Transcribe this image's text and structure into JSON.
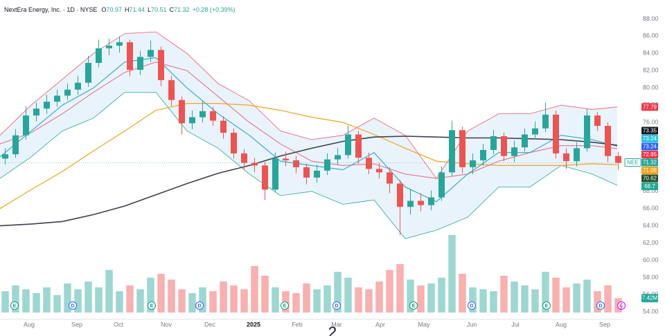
{
  "chart_data": {
    "type": "candlestick",
    "header": {
      "name": "NextEra Energy, Inc.",
      "interval": "1D",
      "exchange": "NYSE",
      "quote": [
        {
          "label": "O",
          "value": 70.97
        },
        {
          "label": "H",
          "value": 71.44
        },
        {
          "label": "L",
          "value": 70.51
        },
        {
          "label": "C",
          "value": 71.32
        }
      ],
      "change": "+0.28 (+0.39%)"
    },
    "xlim": [
      0,
      300
    ],
    "ylim": [
      52.5,
      90.2
    ],
    "yticks": [
      {
        "value": 54,
        "label": "54.00"
      },
      {
        "value": 56,
        "label": "56.00"
      },
      {
        "value": 58,
        "label": "58.00"
      },
      {
        "value": 60,
        "label": "60.00"
      },
      {
        "value": 62,
        "label": "62.00"
      },
      {
        "value": 64,
        "label": "64.00"
      },
      {
        "value": 66,
        "label": "66.00"
      },
      {
        "value": 68,
        "label": "68.00"
      },
      {
        "value": 70,
        "label": "70.00"
      },
      {
        "value": 72,
        "label": "72.00"
      },
      {
        "value": 74,
        "label": "74.00"
      },
      {
        "value": 76,
        "label": "76.00"
      },
      {
        "value": 78,
        "label": "78.00"
      },
      {
        "value": 80,
        "label": "80.00"
      },
      {
        "value": 82,
        "label": "82.00"
      },
      {
        "value": 84,
        "label": "84.00"
      },
      {
        "value": 86,
        "label": "86.00"
      },
      {
        "value": 88,
        "label": "88.00"
      }
    ],
    "xticks": [
      {
        "value": 14,
        "label": "Aug"
      },
      {
        "value": 37,
        "label": "Sep"
      },
      {
        "value": 57,
        "label": "Oct"
      },
      {
        "value": 80,
        "label": "Nov"
      },
      {
        "value": 101,
        "label": "Dec"
      },
      {
        "value": 122,
        "label": "2025"
      },
      {
        "value": 143,
        "label": "Feb"
      },
      {
        "value": 162,
        "label": "Mar"
      },
      {
        "value": 183,
        "label": "Apr"
      },
      {
        "value": 204,
        "label": "May"
      },
      {
        "value": 227,
        "label": "Jun"
      },
      {
        "value": 248,
        "label": "Jul"
      },
      {
        "value": 270,
        "label": "Aug"
      },
      {
        "value": 291,
        "label": "Sep"
      }
    ],
    "up_color": "#26a69a",
    "down_color": "#ef5350",
    "x": [
      2.5,
      7.5,
      12.5,
      17.5,
      22.5,
      27.5,
      32.5,
      37.5,
      42.5,
      47.5,
      52.5,
      57.5,
      62.5,
      67.5,
      72.5,
      77.5,
      82.5,
      87.5,
      92.5,
      97.5,
      102.5,
      107.5,
      112.5,
      117.5,
      122.5,
      127.5,
      132.5,
      137.5,
      142.5,
      147.5,
      152.5,
      157.5,
      162.5,
      167.5,
      172.5,
      177.5,
      182.5,
      187.5,
      192.5,
      197.5,
      202.5,
      207.5,
      212.5,
      217.5,
      222.5,
      227.5,
      232.5,
      237.5,
      242.5,
      247.5,
      252.5,
      257.5,
      262.5,
      267.5,
      272.5,
      277.5,
      282.5,
      287.5,
      292.5,
      297.5
    ],
    "open": [
      71.8,
      72.3,
      74.5,
      76.8,
      77.6,
      78.4,
      79.1,
      79.8,
      80.6,
      82.9,
      84.6,
      84.9,
      85.3,
      82.1,
      83.6,
      84.4,
      80.9,
      78.6,
      75.9,
      76.6,
      77.3,
      76.2,
      74.8,
      72.4,
      71.3,
      71.0,
      68.2,
      71.8,
      71.6,
      70.8,
      69.6,
      70.4,
      71.7,
      72.2,
      74.6,
      71.9,
      70.6,
      70.2,
      68.9,
      66.2,
      66.9,
      66.4,
      67.3,
      70.2,
      75.1,
      70.8,
      71.6,
      72.8,
      74.4,
      72.1,
      73.1,
      74.6,
      75.3,
      76.9,
      72.4,
      71.5,
      73.0,
      76.8,
      75.6,
      72.1
    ],
    "high": [
      73.0,
      75.2,
      77.9,
      78.3,
      79.2,
      79.8,
      80.5,
      81.4,
      83.7,
      85.6,
      85.7,
      86.0,
      85.6,
      84.3,
      85.5,
      84.8,
      81.4,
      79.0,
      77.4,
      78.5,
      77.8,
      76.7,
      75.3,
      72.9,
      71.9,
      71.4,
      72.5,
      72.6,
      72.1,
      71.2,
      71.1,
      72.4,
      73.0,
      75.6,
      75.0,
      72.5,
      71.3,
      70.8,
      69.3,
      68.2,
      67.8,
      68.1,
      70.9,
      76.2,
      75.5,
      72.4,
      73.5,
      75.1,
      74.8,
      73.9,
      75.3,
      76.1,
      78.3,
      77.4,
      73.0,
      73.7,
      77.6,
      77.2,
      76.0,
      72.6
    ],
    "low": [
      71.1,
      71.9,
      74.0,
      76.1,
      77.0,
      77.8,
      78.6,
      79.2,
      80.1,
      82.4,
      83.8,
      84.1,
      81.4,
      81.5,
      83.0,
      80.2,
      77.9,
      74.6,
      75.2,
      76.0,
      75.6,
      74.1,
      71.8,
      70.5,
      70.2,
      67.0,
      67.9,
      70.9,
      70.1,
      68.8,
      69.0,
      69.9,
      71.1,
      71.8,
      71.2,
      70.0,
      69.5,
      67.8,
      62.9,
      65.3,
      65.7,
      65.8,
      66.9,
      69.8,
      70.1,
      70.0,
      71.0,
      72.3,
      71.5,
      71.4,
      72.6,
      74.0,
      74.9,
      71.8,
      70.6,
      70.9,
      72.6,
      75.0,
      71.4,
      70.5
    ],
    "close": [
      72.3,
      74.5,
      76.8,
      77.6,
      78.4,
      79.1,
      79.8,
      80.6,
      82.9,
      84.6,
      84.9,
      85.3,
      82.1,
      83.6,
      84.4,
      80.9,
      78.6,
      75.9,
      76.6,
      77.3,
      76.2,
      74.8,
      72.4,
      71.3,
      71.0,
      68.2,
      71.8,
      71.6,
      70.8,
      69.6,
      70.4,
      71.7,
      72.2,
      74.6,
      71.9,
      70.6,
      70.2,
      68.9,
      66.2,
      66.9,
      66.4,
      67.3,
      70.2,
      75.1,
      70.8,
      71.6,
      72.8,
      74.4,
      72.1,
      73.1,
      74.6,
      75.3,
      76.9,
      72.4,
      71.5,
      73.0,
      76.8,
      75.6,
      72.1,
      71.3
    ],
    "volume": [
      11,
      14,
      12,
      10,
      13,
      9,
      15,
      12,
      16,
      13,
      22,
      11,
      14,
      12,
      18,
      20,
      17,
      12,
      10,
      13,
      11,
      16,
      14,
      12,
      24,
      19,
      13,
      11,
      10,
      15,
      12,
      14,
      21,
      18,
      13,
      12,
      16,
      22,
      25,
      17,
      14,
      15,
      18,
      40,
      20,
      13,
      12,
      11,
      19,
      16,
      14,
      12,
      21,
      18,
      13,
      15,
      17,
      11,
      14,
      7.42
    ],
    "vlim": [
      0,
      40
    ],
    "volume_label": {
      "value": 7.42,
      "label": "7.42M"
    },
    "line_x": [
      0,
      15,
      30,
      45,
      60,
      75,
      90,
      105,
      120,
      135,
      150,
      165,
      180,
      195,
      210,
      225,
      240,
      255,
      270,
      285,
      297
    ],
    "band_fill": "#e3f0fb",
    "lines": [
      {
        "color": "#f7525f",
        "width": 0.8,
        "values": [
          74.5,
          78.0,
          81.0,
          84.0,
          86.3,
          86.5,
          84.0,
          80.5,
          78.5,
          75.0,
          74.0,
          74.5,
          76.5,
          74.5,
          69.5,
          75.0,
          77.0,
          77.0,
          78.0,
          77.5,
          77.79
        ]
      },
      {
        "color": "#22ab94",
        "width": 0.8,
        "values": [
          69.5,
          72.0,
          75.0,
          76.5,
          79.5,
          79.5,
          75.0,
          73.0,
          70.0,
          67.5,
          68.0,
          66.5,
          67.0,
          62.5,
          63.5,
          65.0,
          68.5,
          68.5,
          71.0,
          70.0,
          68.7
        ]
      },
      {
        "color": "#f7a21b",
        "width": 1.2,
        "values": [
          66.0,
          68.2,
          70.3,
          72.7,
          75.0,
          77.4,
          78.2,
          78.2,
          78.0,
          77.4,
          76.6,
          76.0,
          74.6,
          73.0,
          71.5,
          71.2,
          71.0,
          71.0,
          71.0,
          71.2,
          71.08
        ]
      },
      {
        "color": "#e57385",
        "width": 1.1,
        "values": [
          73.5,
          74.8,
          77.0,
          79.5,
          81.8,
          83.0,
          82.0,
          79.0,
          76.0,
          73.5,
          71.5,
          71.0,
          71.2,
          70.0,
          69.5,
          70.0,
          71.5,
          72.5,
          73.3,
          73.3,
          72.95
        ]
      },
      {
        "color": "#26a8c9",
        "width": 1.1,
        "values": [
          72.0,
          75.0,
          78.0,
          80.0,
          83.0,
          83.5,
          80.0,
          77.0,
          74.5,
          71.5,
          71.0,
          70.5,
          72.5,
          68.5,
          66.8,
          70.0,
          72.5,
          72.5,
          74.5,
          74.0,
          73.24
        ]
      },
      {
        "color": "#3b3f4a",
        "width": 1.6,
        "values": [
          64.0,
          64.2,
          64.5,
          65.3,
          66.3,
          67.6,
          68.9,
          70.1,
          71.0,
          72.1,
          73.0,
          73.8,
          74.3,
          74.4,
          74.3,
          74.2,
          74.2,
          74.1,
          74.0,
          73.7,
          73.35
        ]
      }
    ],
    "price_labels": [
      {
        "value": 77.79,
        "color": "#f23645"
      },
      {
        "value": 73.35,
        "color": "#131722"
      },
      {
        "value": 73.24,
        "color": "#26c6da"
      },
      {
        "value": 73.24,
        "color": "#2962ff"
      },
      {
        "value": 72.95,
        "color": "#f23645"
      },
      {
        "name": "NEE",
        "value": 71.32,
        "color": "#26a69a"
      },
      {
        "value": 71.08,
        "color": "#f7a21b"
      },
      {
        "value": 70.62,
        "color": "#1e4d2b"
      },
      {
        "value": 68.7,
        "color": "#22ab94"
      }
    ],
    "events": [
      {
        "x": 7,
        "label": "E"
      },
      {
        "x": 35,
        "label": "D"
      },
      {
        "x": 73,
        "label": "E"
      },
      {
        "x": 96,
        "label": "D"
      },
      {
        "x": 137,
        "label": "E"
      },
      {
        "x": 162,
        "label": "D"
      },
      {
        "x": 199,
        "label": "E"
      },
      {
        "x": 227,
        "label": "D"
      },
      {
        "x": 263,
        "label": "E"
      },
      {
        "x": 289,
        "label": "D"
      }
    ],
    "page_number": "2"
  }
}
